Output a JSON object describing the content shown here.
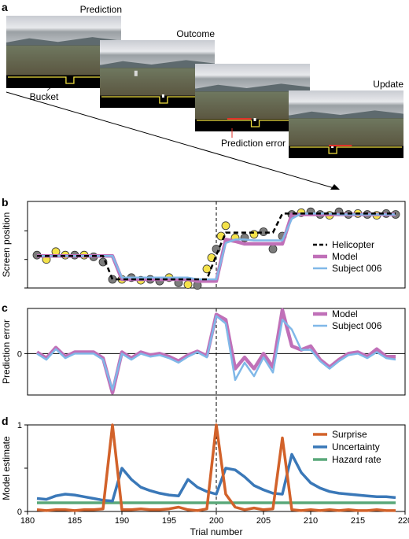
{
  "panel_a": {
    "letter": "a",
    "screens": [
      {
        "title": "Prediction",
        "label": "Bucket"
      },
      {
        "title": "Outcome",
        "label": ""
      },
      {
        "title": "",
        "label": "Prediction error"
      },
      {
        "title": "Update",
        "label": ""
      }
    ],
    "colors": {
      "bucket": "#f0e040",
      "error": "#e0302a",
      "screen_bg": "#000000"
    }
  },
  "chart_data": [
    {
      "panel": "b",
      "type": "line",
      "ylabel": "Screen position",
      "xlabel": "",
      "xlim": [
        180,
        220
      ],
      "ylim": [
        0,
        1
      ],
      "vline_x": 200,
      "legend": [
        "Helicopter",
        "Model",
        "Subject 006"
      ],
      "legend_position": "right",
      "x": [
        181,
        182,
        183,
        184,
        185,
        186,
        187,
        188,
        189,
        190,
        191,
        192,
        193,
        194,
        195,
        196,
        197,
        198,
        199,
        200,
        201,
        202,
        203,
        204,
        205,
        206,
        207,
        208,
        209,
        210,
        211,
        212,
        213,
        214,
        215,
        216,
        217,
        218,
        219
      ],
      "series": [
        {
          "name": "Helicopter",
          "style": "dashed",
          "color": "#000000",
          "values": [
            0.37,
            0.37,
            0.37,
            0.37,
            0.37,
            0.37,
            0.37,
            0.37,
            0.1,
            0.1,
            0.1,
            0.1,
            0.1,
            0.1,
            0.1,
            0.1,
            0.1,
            0.1,
            0.1,
            0.38,
            0.64,
            0.64,
            0.64,
            0.64,
            0.64,
            0.64,
            0.86,
            0.86,
            0.86,
            0.86,
            0.86,
            0.86,
            0.86,
            0.86,
            0.86,
            0.86,
            0.86,
            0.86,
            0.86
          ]
        },
        {
          "name": "Model",
          "style": "solid",
          "color": "#c070b8",
          "values": [
            0.37,
            0.37,
            0.37,
            0.37,
            0.37,
            0.37,
            0.37,
            0.37,
            0.37,
            0.1,
            0.1,
            0.1,
            0.1,
            0.1,
            0.1,
            0.1,
            0.1,
            0.08,
            0.08,
            0.08,
            0.56,
            0.54,
            0.51,
            0.51,
            0.51,
            0.51,
            0.51,
            0.85,
            0.85,
            0.85,
            0.85,
            0.85,
            0.85,
            0.85,
            0.85,
            0.85,
            0.85,
            0.85,
            0.85
          ]
        },
        {
          "name": "Subject 006",
          "style": "solid",
          "color": "#80b8e8",
          "values": [
            0.37,
            0.37,
            0.37,
            0.37,
            0.37,
            0.37,
            0.37,
            0.37,
            0.37,
            0.12,
            0.12,
            0.12,
            0.12,
            0.12,
            0.12,
            0.12,
            0.12,
            0.1,
            0.1,
            0.1,
            0.52,
            0.56,
            0.56,
            0.55,
            0.55,
            0.55,
            0.55,
            0.8,
            0.86,
            0.86,
            0.86,
            0.86,
            0.85,
            0.85,
            0.85,
            0.85,
            0.85,
            0.85,
            0.85
          ]
        }
      ],
      "outcomes": [
        {
          "x": 181,
          "y": 0.38,
          "c": "gray"
        },
        {
          "x": 182,
          "y": 0.33,
          "c": "yellow"
        },
        {
          "x": 183,
          "y": 0.42,
          "c": "yellow"
        },
        {
          "x": 184,
          "y": 0.38,
          "c": "yellow"
        },
        {
          "x": 185,
          "y": 0.38,
          "c": "gray"
        },
        {
          "x": 186,
          "y": 0.38,
          "c": "yellow"
        },
        {
          "x": 187,
          "y": 0.36,
          "c": "gray"
        },
        {
          "x": 188,
          "y": 0.3,
          "c": "gray"
        },
        {
          "x": 189,
          "y": 0.1,
          "c": "gray"
        },
        {
          "x": 190,
          "y": 0.1,
          "c": "yellow"
        },
        {
          "x": 191,
          "y": 0.12,
          "c": "gray"
        },
        {
          "x": 192,
          "y": 0.09,
          "c": "yellow"
        },
        {
          "x": 193,
          "y": 0.1,
          "c": "gray"
        },
        {
          "x": 194,
          "y": 0.08,
          "c": "gray"
        },
        {
          "x": 195,
          "y": 0.12,
          "c": "yellow"
        },
        {
          "x": 196,
          "y": 0.06,
          "c": "gray"
        },
        {
          "x": 197,
          "y": 0.04,
          "c": "yellow"
        },
        {
          "x": 198,
          "y": 0.03,
          "c": "gray"
        },
        {
          "x": 199,
          "y": 0.22,
          "c": "yellow"
        },
        {
          "x": 199.5,
          "y": 0.35,
          "c": "yellow"
        },
        {
          "x": 200,
          "y": 0.45,
          "c": "gray"
        },
        {
          "x": 200.5,
          "y": 0.6,
          "c": "yellow"
        },
        {
          "x": 201,
          "y": 0.72,
          "c": "yellow"
        },
        {
          "x": 202,
          "y": 0.58,
          "c": "yellow"
        },
        {
          "x": 203,
          "y": 0.58,
          "c": "gray"
        },
        {
          "x": 204,
          "y": 0.62,
          "c": "yellow"
        },
        {
          "x": 205,
          "y": 0.65,
          "c": "gray"
        },
        {
          "x": 206,
          "y": 0.45,
          "c": "gray"
        },
        {
          "x": 207,
          "y": 0.6,
          "c": "gray"
        },
        {
          "x": 208,
          "y": 0.85,
          "c": "gray"
        },
        {
          "x": 209,
          "y": 0.87,
          "c": "yellow"
        },
        {
          "x": 210,
          "y": 0.88,
          "c": "gray"
        },
        {
          "x": 211,
          "y": 0.85,
          "c": "gray"
        },
        {
          "x": 212,
          "y": 0.84,
          "c": "yellow"
        },
        {
          "x": 213,
          "y": 0.88,
          "c": "gray"
        },
        {
          "x": 214,
          "y": 0.85,
          "c": "gray"
        },
        {
          "x": 215,
          "y": 0.86,
          "c": "yellow"
        },
        {
          "x": 216,
          "y": 0.85,
          "c": "gray"
        },
        {
          "x": 217,
          "y": 0.84,
          "c": "yellow"
        },
        {
          "x": 218,
          "y": 0.86,
          "c": "gray"
        },
        {
          "x": 219,
          "y": 0.85,
          "c": "gray"
        }
      ]
    },
    {
      "panel": "c",
      "type": "line",
      "ylabel": "Prediction error",
      "xlabel": "",
      "xlim": [
        180,
        220
      ],
      "ylim": [
        -0.55,
        0.6
      ],
      "yticks": [
        0
      ],
      "vline_x": 200,
      "legend": [
        "Model",
        "Subject 006"
      ],
      "legend_position": "right",
      "x": [
        181,
        182,
        183,
        184,
        185,
        186,
        187,
        188,
        189,
        190,
        191,
        192,
        193,
        194,
        195,
        196,
        197,
        198,
        199,
        200,
        201,
        202,
        203,
        204,
        205,
        206,
        207,
        208,
        209,
        210,
        211,
        212,
        213,
        214,
        215,
        216,
        217,
        218,
        219
      ],
      "series": [
        {
          "name": "Model",
          "color": "#c070b8",
          "values": [
            0.02,
            -0.06,
            0.08,
            -0.04,
            0.02,
            0.02,
            0.02,
            -0.06,
            -0.52,
            0.02,
            -0.06,
            0.02,
            -0.02,
            0.0,
            -0.04,
            -0.1,
            -0.02,
            0.03,
            -0.03,
            0.52,
            0.45,
            -0.2,
            -0.05,
            -0.2,
            0.0,
            -0.18,
            0.58,
            0.1,
            0.05,
            0.1,
            -0.08,
            -0.18,
            -0.08,
            0.0,
            0.02,
            -0.04,
            0.06,
            -0.04,
            -0.04
          ]
        },
        {
          "name": "Subject 006",
          "color": "#80b8e8",
          "values": [
            0.0,
            -0.08,
            0.06,
            -0.06,
            0.0,
            0.0,
            0.0,
            -0.08,
            -0.48,
            0.0,
            -0.08,
            0.0,
            -0.04,
            -0.02,
            -0.06,
            -0.12,
            -0.04,
            0.02,
            -0.05,
            0.5,
            0.4,
            -0.35,
            -0.12,
            -0.3,
            -0.05,
            -0.25,
            0.45,
            0.32,
            0.05,
            0.05,
            -0.1,
            -0.2,
            -0.1,
            -0.02,
            0.0,
            -0.06,
            0.02,
            -0.06,
            -0.08
          ]
        }
      ]
    },
    {
      "panel": "d",
      "type": "line",
      "ylabel": "Model estimate",
      "xlabel": "Trial number",
      "xlim": [
        180,
        220
      ],
      "ylim": [
        0,
        1
      ],
      "yticks": [
        0,
        1
      ],
      "xticks": [
        180,
        185,
        190,
        195,
        200,
        205,
        210,
        215,
        220
      ],
      "vline_x": 200,
      "legend": [
        "Surprise",
        "Uncertainty",
        "Hazard rate"
      ],
      "legend_position": "right",
      "x": [
        181,
        182,
        183,
        184,
        185,
        186,
        187,
        188,
        189,
        190,
        191,
        192,
        193,
        194,
        195,
        196,
        197,
        198,
        199,
        200,
        201,
        202,
        203,
        204,
        205,
        206,
        207,
        208,
        209,
        210,
        211,
        212,
        213,
        214,
        215,
        216,
        217,
        218,
        219
      ],
      "series": [
        {
          "name": "Surprise",
          "color": "#d2622a",
          "values": [
            0.02,
            0.01,
            0.02,
            0.02,
            0.01,
            0.02,
            0.02,
            0.03,
            1.0,
            0.02,
            0.02,
            0.03,
            0.02,
            0.02,
            0.03,
            0.05,
            0.02,
            0.01,
            0.03,
            1.0,
            0.2,
            0.05,
            0.02,
            0.04,
            0.02,
            0.03,
            0.85,
            0.02,
            0.01,
            0.02,
            0.01,
            0.02,
            0.01,
            0.02,
            0.01,
            0.01,
            0.02,
            0.01,
            0.01
          ]
        },
        {
          "name": "Uncertainty",
          "color": "#3a78b8",
          "values": [
            0.15,
            0.14,
            0.18,
            0.2,
            0.19,
            0.17,
            0.15,
            0.13,
            0.12,
            0.5,
            0.37,
            0.28,
            0.24,
            0.21,
            0.19,
            0.18,
            0.37,
            0.28,
            0.23,
            0.2,
            0.5,
            0.48,
            0.4,
            0.3,
            0.25,
            0.21,
            0.2,
            0.66,
            0.45,
            0.33,
            0.27,
            0.23,
            0.21,
            0.2,
            0.19,
            0.18,
            0.17,
            0.17,
            0.16
          ]
        },
        {
          "name": "Hazard rate",
          "color": "#5aa87a",
          "values": [
            0.1,
            0.1,
            0.1,
            0.1,
            0.1,
            0.1,
            0.1,
            0.1,
            0.1,
            0.1,
            0.1,
            0.1,
            0.1,
            0.1,
            0.1,
            0.1,
            0.1,
            0.1,
            0.1,
            0.1,
            0.1,
            0.1,
            0.1,
            0.1,
            0.1,
            0.1,
            0.1,
            0.1,
            0.1,
            0.1,
            0.1,
            0.1,
            0.1,
            0.1,
            0.1,
            0.1,
            0.1,
            0.1,
            0.1
          ]
        }
      ]
    }
  ],
  "panel_letters": {
    "b": "b",
    "c": "c",
    "d": "d"
  },
  "tick_labels": {
    "zero": "0",
    "one": "1",
    "d_zero": "0"
  }
}
